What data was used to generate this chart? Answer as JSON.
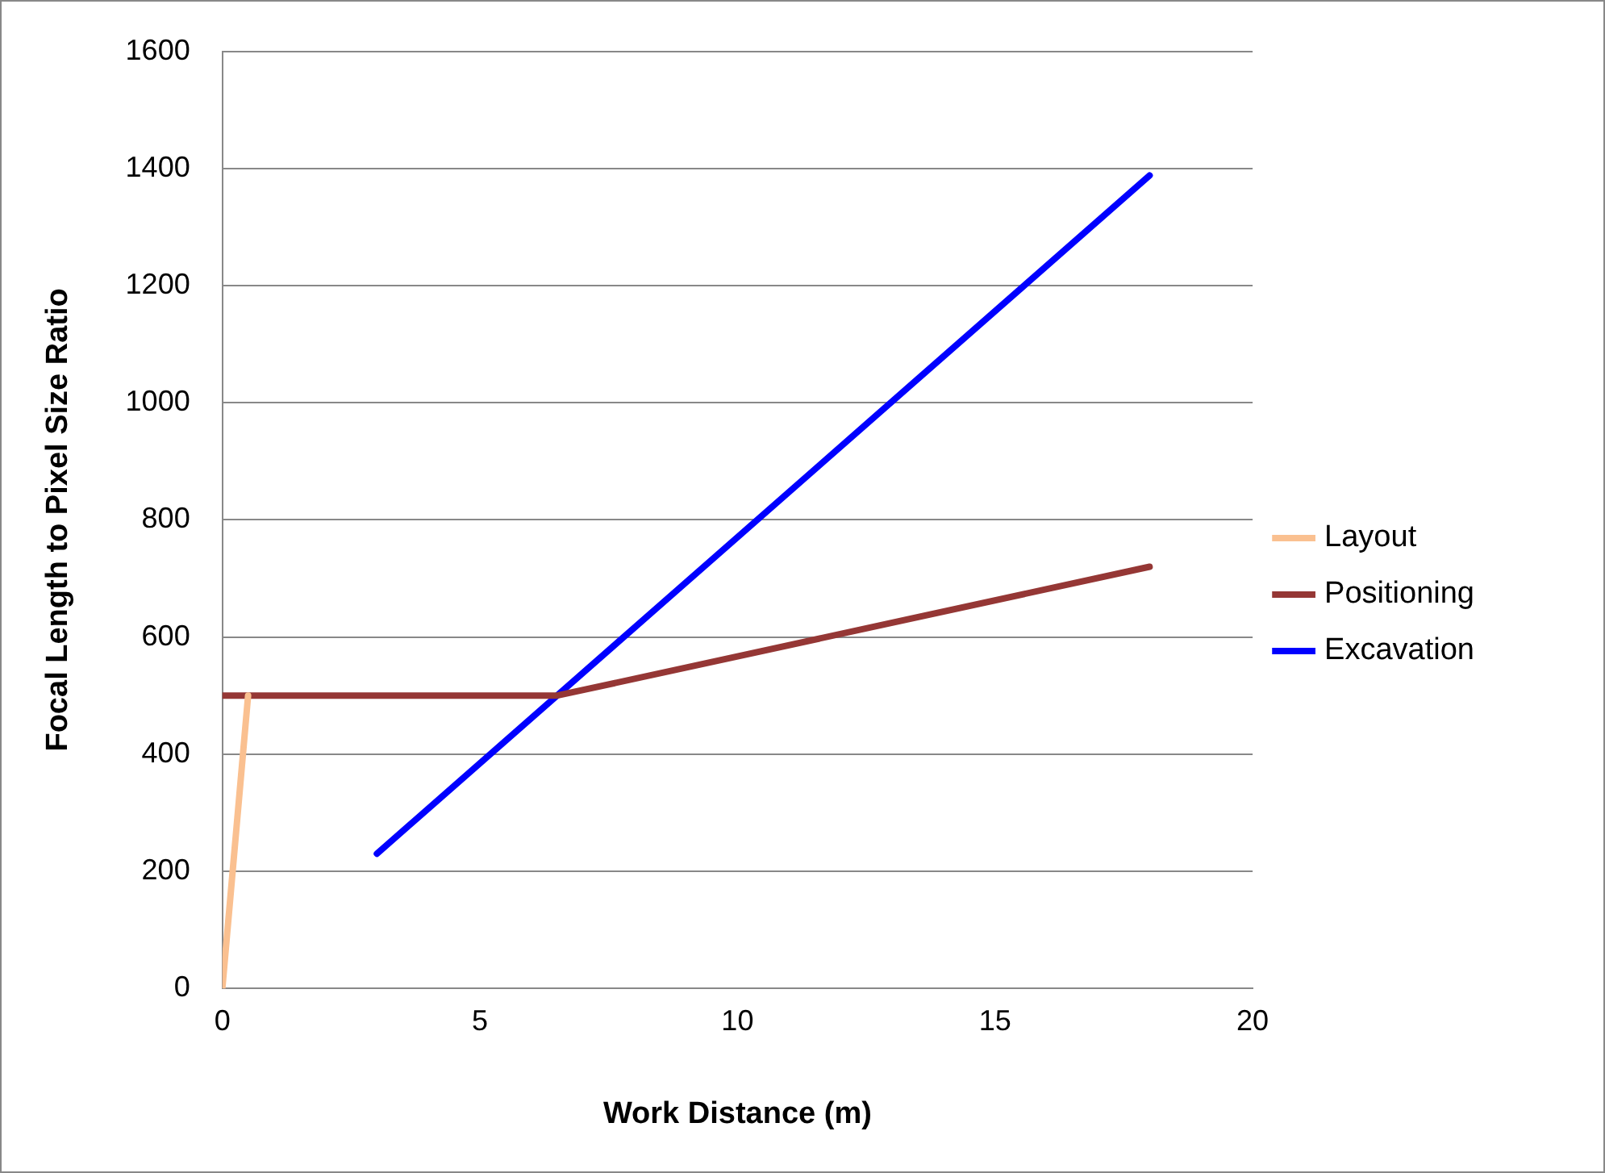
{
  "chart_data": {
    "type": "line",
    "xlabel": "Work Distance (m)",
    "ylabel": "Focal Length to Pixel Size Ratio",
    "xlim": [
      0,
      20
    ],
    "xticks": [
      0,
      5,
      10,
      15,
      20
    ],
    "ylim": [
      0,
      1600
    ],
    "yticks": [
      0,
      200,
      400,
      600,
      800,
      1000,
      1200,
      1400,
      1600
    ],
    "grid": "y",
    "legend": "right",
    "marker": "none",
    "line_style": "solid",
    "series": [
      {
        "name": "Layout",
        "color": "#fac090",
        "x": [
          0,
          0.5
        ],
        "values": [
          0,
          500
        ]
      },
      {
        "name": "Positioning",
        "color": "#953735",
        "x": [
          0,
          6.5,
          18
        ],
        "values": [
          500,
          500,
          720
        ]
      },
      {
        "name": "Excavation",
        "color": "#0000ff",
        "x": [
          3,
          18
        ],
        "values": [
          230,
          1388
        ]
      }
    ]
  }
}
